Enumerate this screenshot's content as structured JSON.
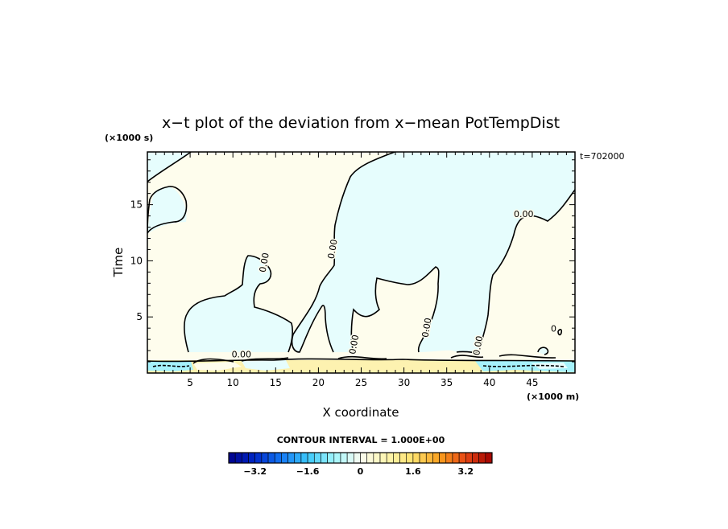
{
  "chart_data": {
    "type": "heatmap",
    "title": "x−t plot of the deviation from x−mean PotTempDist",
    "xlabel": "X coordinate",
    "ylabel": "Time",
    "x_unit": "(×1000 m)",
    "y_unit": "(×1000 s)",
    "time_stamp": "t=702000",
    "xlim": [
      0,
      50
    ],
    "ylim": [
      0,
      19.7
    ],
    "x_ticks": [
      5,
      10,
      15,
      20,
      25,
      30,
      35,
      40,
      45
    ],
    "y_ticks": [
      5,
      10,
      15
    ],
    "contour_labels": [
      {
        "text": "0.00",
        "x": 11,
        "y": 1.4
      },
      {
        "text": "0.00",
        "x": 24.5,
        "y": 2.5
      },
      {
        "text": "0.00",
        "x": 14,
        "y": 9.8
      },
      {
        "text": "0.00",
        "x": 22,
        "y": 11.0
      },
      {
        "text": "0.00",
        "x": 33,
        "y": 4.0
      },
      {
        "text": "0.00",
        "x": 39,
        "y": 2.4
      },
      {
        "text": "0.00",
        "x": 44,
        "y": 13.9
      },
      {
        "text": "0",
        "x": 47.5,
        "y": 3.7
      }
    ],
    "contour_interval_text": "CONTOUR INTERVAL = 1.000E+00",
    "colorbar": {
      "range": [
        -4,
        4
      ],
      "step": 0.2,
      "tick_values": [
        -3.2,
        -1.6,
        0,
        1.6,
        3.2
      ],
      "tick_labels": [
        "−3.2",
        "−1.6",
        "0",
        "1.6",
        "3.2"
      ]
    },
    "colors": {
      "positive_fill": "#fefded",
      "negative_fill": "#e6fdfd",
      "bottom_warm": "#fdf2b0",
      "bottom_cool": "#a6f2fb"
    }
  }
}
